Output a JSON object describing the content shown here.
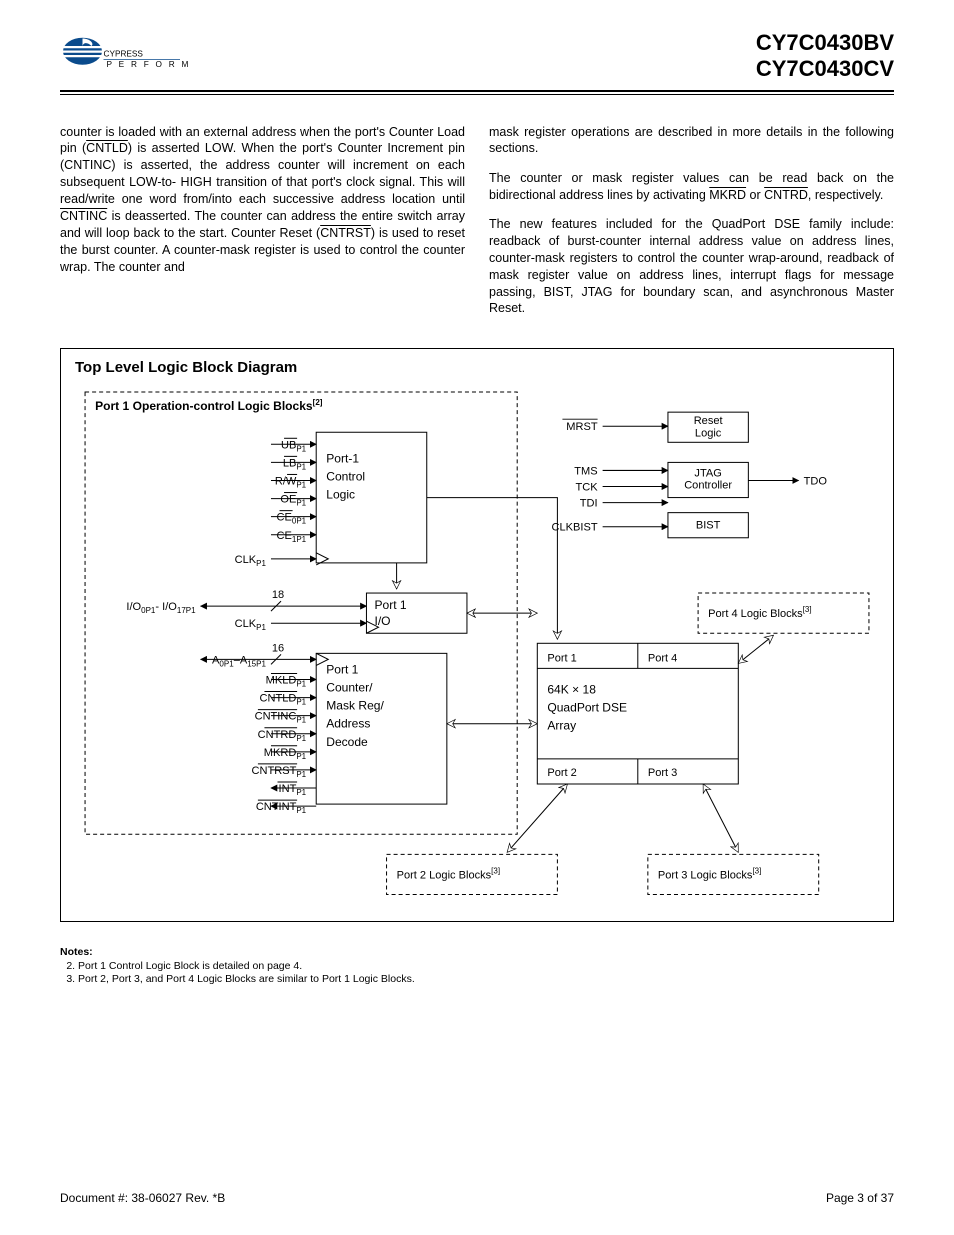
{
  "header": {
    "logo_text": "CYPRESS",
    "logo_tagline": "P E R F O R M",
    "part1": "CY7C0430BV",
    "part2": "CY7C0430CV",
    "logo_color": "#0a4b8c"
  },
  "body": {
    "col1_p1_a": "counter is loaded with an external address when the port's Counter Load pin (",
    "col1_p1_cntld": "CNTLD",
    "col1_p1_b": ") is asserted LOW. When the port's Counter Increment pin (CNTINC) is asserted, the address counter will increment on each subsequent LOW-to- HIGH transition of that port's clock signal. This will read/write one word from/into each successive address location until ",
    "col1_p1_cntinc": "CNTINC",
    "col1_p1_c": " is deasserted. The counter can address the entire switch array and will loop back to the start. Counter Reset (",
    "col1_p1_cntrst": "CNTRST",
    "col1_p1_d": ") is used to reset the burst counter. A counter-mask register is used to control the counter wrap. The counter and",
    "col2_p1": "mask register operations are described in more details in the following sections.",
    "col2_p2_a": "The counter or mask register values can be read back on the bidirectional address lines by activating ",
    "col2_p2_mkrd": "MKRD",
    "col2_p2_or": " or ",
    "col2_p2_cntrd": "CNTRD",
    "col2_p2_b": ", respectively.",
    "col2_p3": "The new features included for the QuadPort DSE family include: readback of burst-counter internal address value on address lines, counter-mask registers to control the counter wrap-around, readback of mask register value on address lines, interrupt flags for message passing, BIST, JTAG for boundary scan, and asynchronous Master Reset."
  },
  "diagram": {
    "title": "Top Level Logic Block Diagram",
    "port1_block_title": "Port 1 Operation-control Logic Blocks",
    "port1_block_note": "[2]",
    "signals_ctrl": [
      {
        "base": "UB",
        "sub": "P1",
        "ov": true
      },
      {
        "base": "LB",
        "sub": "P1",
        "ov": true
      },
      {
        "base": "R/W",
        "sub": "P1",
        "ov": "partial",
        "ov_text": "W"
      },
      {
        "base": "OE",
        "sub": "P1",
        "ov": true
      },
      {
        "base": "CE",
        "sub": "0P1",
        "ov": true
      },
      {
        "base": "CE",
        "sub": "1P1",
        "ov": false
      }
    ],
    "clk_label": {
      "base": "CLK",
      "sub": "P1"
    },
    "io_label_a": "I/O",
    "io_label_a_sub": "0P1",
    "io_label_b": "- I/O",
    "io_label_b_sub": "17P1",
    "bus_18": "18",
    "addr_label": {
      "base": "A",
      "sub": "0P1",
      "dash": "–A",
      "sub2": "15P1"
    },
    "bus_16": "16",
    "signals_counter": [
      {
        "base": "MKLD",
        "sub": "P1",
        "ov": true
      },
      {
        "base": "CNTLD",
        "sub": "P1",
        "ov": true
      },
      {
        "base": "CNTINC",
        "sub": "P1",
        "ov": true
      },
      {
        "base": "CNTRD",
        "sub": "P1",
        "ov": true
      },
      {
        "base": "MKRD",
        "sub": "P1",
        "ov": true
      },
      {
        "base": "CNTRST",
        "sub": "P1",
        "ov": true
      },
      {
        "base": "INT",
        "sub": "P1",
        "ov": true
      },
      {
        "base": "CNTINT",
        "sub": "P1",
        "ov": true
      }
    ],
    "box_control": [
      "Port-1",
      "Control",
      "Logic"
    ],
    "box_io": [
      "Port 1",
      "I/O"
    ],
    "box_counter": [
      "Port 1",
      "Counter/",
      "Mask Reg/",
      "Address",
      "Decode"
    ],
    "box_array_ports": [
      "Port 1",
      "Port 4",
      "Port 2",
      "Port 3"
    ],
    "box_array_center": [
      "64K × 18",
      "QuadPort DSE",
      "Array"
    ],
    "mrst": "MRST",
    "reset_logic": [
      "Reset",
      "Logic"
    ],
    "jtag_in": [
      "TMS",
      "TCK",
      "TDI"
    ],
    "jtag_box": [
      "JTAG",
      "Controller"
    ],
    "tdo": "TDO",
    "clkbist": "CLKBIST",
    "bist": "BIST",
    "port4_block": "Port 4 Logic Blocks",
    "port2_block": "Port 2 Logic Blocks",
    "port3_block": "Port 3 Logic Blocks",
    "note3": "[3]"
  },
  "notes": {
    "heading": "Notes:",
    "n2": "Port 1 Control Logic Block is detailed on page 4.",
    "n3": "Port 2, Port 3, and Port 4 Logic Blocks are similar to Port 1 Logic Blocks."
  },
  "footer": {
    "doc": "Document #: 38-06027 Rev. *B",
    "page": "Page 3 of 37"
  },
  "style": {
    "line_color": "#000",
    "dash": "4,3"
  }
}
